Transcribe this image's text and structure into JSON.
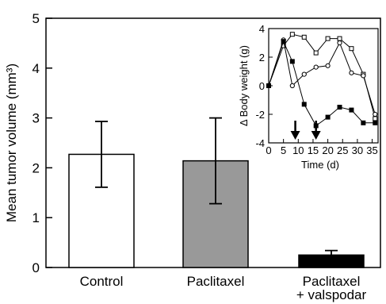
{
  "chart_data": [
    {
      "type": "bar",
      "ylabel": "Mean tumor volume (mm³)",
      "xlabel": "",
      "ylim": [
        0,
        5
      ],
      "yticks": [
        "0",
        "1",
        "2",
        "3",
        "4",
        "5"
      ],
      "categories": [
        "Control",
        "Paclitaxel",
        "Paclitaxel\n+ valspodar"
      ],
      "category_lines": [
        [
          "Control"
        ],
        [
          "Paclitaxel"
        ],
        [
          "Paclitaxel",
          "+ valspodar"
        ]
      ],
      "values": [
        2.27,
        2.14,
        0.25
      ],
      "error_plus": [
        0.66,
        0.86,
        0.09
      ],
      "error_minus": [
        0.66,
        0.86,
        0.09
      ],
      "bar_colors": [
        "#ffffff",
        "#999999",
        "#000000"
      ]
    },
    {
      "type": "line",
      "xlabel": "Time (d)",
      "ylabel": "Δ Body weight (g)",
      "xlim": [
        0,
        37
      ],
      "ylim": [
        -4,
        4
      ],
      "xticks": [
        "0",
        "5",
        "10",
        "15",
        "20",
        "25",
        "30",
        "35"
      ],
      "yticks": [
        "4",
        "2",
        "0",
        "-2",
        "-4"
      ],
      "arrows_at_x": [
        9,
        16
      ],
      "series": [
        {
          "marker": "open-square",
          "x": [
            0,
            5,
            8,
            12,
            16,
            20,
            24,
            28,
            32,
            36
          ],
          "y": [
            0,
            2.8,
            3.6,
            3.4,
            2.3,
            3.3,
            3.3,
            2.6,
            0.8,
            -2.3
          ]
        },
        {
          "marker": "open-circle",
          "x": [
            0,
            5,
            8,
            12,
            16,
            20,
            24,
            28,
            32,
            36
          ],
          "y": [
            0,
            3.2,
            0,
            0.8,
            1.3,
            1.4,
            3.0,
            0.9,
            0.7,
            -2.0
          ]
        },
        {
          "marker": "filled-square",
          "x": [
            0,
            5,
            8,
            12,
            16,
            20,
            24,
            28,
            32,
            36
          ],
          "y": [
            0,
            3.1,
            1.7,
            -1.3,
            -2.8,
            -2.2,
            -1.5,
            -1.7,
            -2.6,
            -2.6
          ]
        }
      ]
    }
  ]
}
